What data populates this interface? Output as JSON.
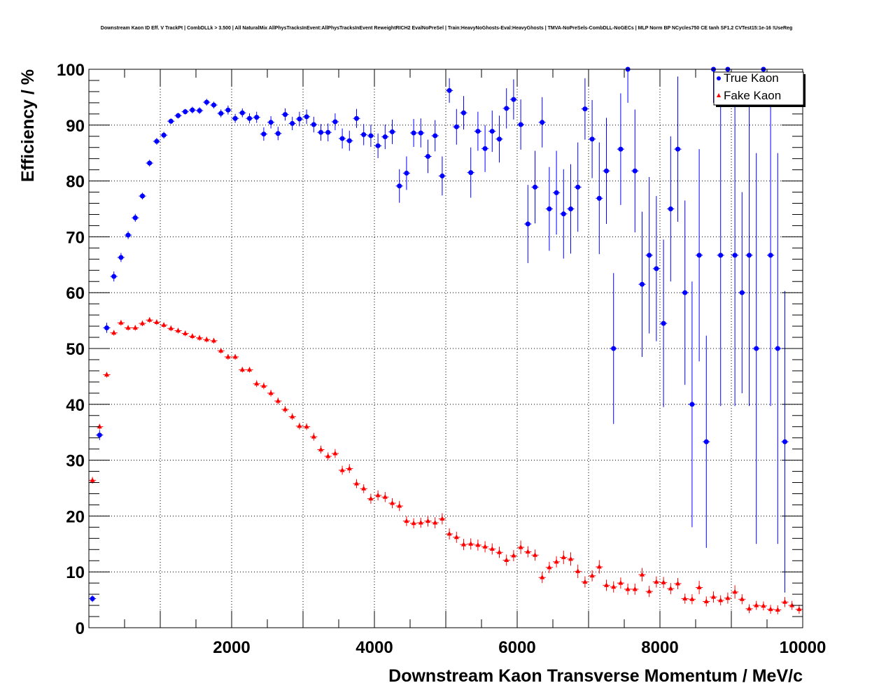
{
  "chart_data": {
    "type": "scatter",
    "title": "Downstream Kaon ID Eff. V TrackPt | CombDLLk > 3.500 | All NaturalMix AllPhysTracksInEvent:AllPhysTracksInEvent ReweightRICH2 EvalNoPreSel | Train:HeavyNoGhosts-Eval:HeavyGhosts | TMVA-NoPreSels-CombDLL-NoGECs | MLP Norm BP NCycles750 CE tanh SF1.2 CVTest15:1e-16 !UseReg",
    "xlabel": "Downstream Kaon Transverse Momentum / MeV/c",
    "ylabel": "Efficiency / %",
    "xlim": [
      0,
      10000
    ],
    "ylim": [
      0,
      100
    ],
    "x_ticks": [
      "2000",
      "4000",
      "6000",
      "8000",
      "10000"
    ],
    "y_ticks": [
      "0",
      "10",
      "20",
      "30",
      "40",
      "50",
      "60",
      "70",
      "80",
      "90",
      "100"
    ],
    "grid": true,
    "legend": "top-right",
    "bin_width": 100,
    "series": [
      {
        "name": "True Kaon",
        "color": "#0000ff",
        "marker": "circle",
        "x": [
          50,
          150,
          250,
          350,
          450,
          550,
          650,
          750,
          850,
          950,
          1050,
          1150,
          1250,
          1350,
          1450,
          1550,
          1650,
          1750,
          1850,
          1950,
          2050,
          2150,
          2250,
          2350,
          2450,
          2550,
          2650,
          2750,
          2850,
          2950,
          3050,
          3150,
          3250,
          3350,
          3450,
          3550,
          3650,
          3750,
          3850,
          3950,
          4050,
          4150,
          4250,
          4350,
          4450,
          4550,
          4650,
          4750,
          4850,
          4950,
          5050,
          5150,
          5250,
          5350,
          5450,
          5550,
          5650,
          5750,
          5850,
          5950,
          6050,
          6150,
          6250,
          6350,
          6450,
          6550,
          6650,
          6750,
          6850,
          6950,
          7050,
          7150,
          7250,
          7350,
          7450,
          7550,
          7650,
          7750,
          7850,
          7950,
          8050,
          8150,
          8250,
          8350,
          8450,
          8550,
          8650,
          8750,
          8850,
          8950,
          9050,
          9150,
          9250,
          9350,
          9450,
          9550,
          9650,
          9750,
          9850,
          9950
        ],
        "y": [
          5.2,
          34.5,
          53.7,
          62.9,
          66.3,
          70.3,
          73.4,
          77.3,
          83.2,
          87.1,
          88.2,
          90.7,
          91.7,
          92.4,
          92.7,
          92.6,
          94.1,
          93.6,
          92.1,
          92.7,
          91.2,
          92.2,
          91.2,
          91.4,
          88.4,
          90.5,
          88.5,
          91.9,
          90.3,
          91.1,
          91.5,
          90.1,
          88.7,
          88.7,
          90.6,
          87.6,
          87.2,
          91.2,
          88.3,
          88.1,
          86.3,
          87.9,
          88.8,
          79.1,
          81.4,
          88.6,
          88.6,
          84.4,
          88.1,
          80.9,
          96.2,
          89.7,
          92.2,
          81.5,
          88.9,
          85.8,
          88.9,
          87.5,
          93.0,
          94.6,
          90.1,
          72.3,
          78.9,
          90.5,
          75.0,
          77.9,
          74.1,
          75.0,
          78.9,
          92.9,
          87.5,
          76.9,
          81.8,
          50.0,
          85.7,
          100.0,
          81.8,
          61.5,
          66.7,
          64.3,
          54.5,
          75.0,
          85.7,
          60.0,
          40.0,
          66.7,
          33.3,
          100.0,
          66.7,
          100.0,
          66.7,
          60.0,
          66.7,
          50.0,
          100.0,
          66.7,
          50.0,
          33.3,
          null,
          null
        ],
        "err": [
          0.6,
          0.9,
          0.9,
          0.9,
          0.8,
          0.7,
          0.7,
          0.6,
          0.6,
          0.6,
          0.6,
          0.5,
          0.5,
          0.5,
          0.6,
          0.6,
          0.6,
          0.6,
          0.7,
          0.8,
          0.8,
          0.8,
          0.9,
          1.0,
          1.2,
          1.1,
          1.2,
          1.1,
          1.2,
          1.3,
          1.3,
          1.4,
          1.5,
          1.6,
          1.5,
          1.8,
          1.8,
          1.7,
          1.9,
          2.0,
          2.2,
          2.2,
          2.2,
          3.0,
          3.0,
          2.5,
          2.6,
          3.0,
          2.8,
          3.5,
          2.2,
          3.2,
          3.0,
          4.5,
          3.5,
          4.2,
          3.7,
          4.2,
          3.6,
          3.6,
          4.5,
          7.0,
          6.5,
          4.5,
          7.5,
          7.5,
          8.0,
          8.0,
          8.0,
          5.5,
          7.0,
          10.0,
          9.5,
          13.5,
          10.0,
          6.0,
          11.0,
          13.0,
          14.0,
          13.0,
          15.0,
          13.0,
          13.0,
          16.5,
          22.0,
          19.0,
          19.0,
          6.0,
          27.0,
          6.0,
          27.0,
          18.0,
          27.0,
          35.0,
          6.0,
          27.0,
          35.0,
          27.0,
          0,
          0
        ]
      },
      {
        "name": "Fake Kaon",
        "color": "#ff0000",
        "marker": "triangle",
        "x": [
          50,
          150,
          250,
          350,
          450,
          550,
          650,
          750,
          850,
          950,
          1050,
          1150,
          1250,
          1350,
          1450,
          1550,
          1650,
          1750,
          1850,
          1950,
          2050,
          2150,
          2250,
          2350,
          2450,
          2550,
          2650,
          2750,
          2850,
          2950,
          3050,
          3150,
          3250,
          3350,
          3450,
          3550,
          3650,
          3750,
          3850,
          3950,
          4050,
          4150,
          4250,
          4350,
          4450,
          4550,
          4650,
          4750,
          4850,
          4950,
          5050,
          5150,
          5250,
          5350,
          5450,
          5550,
          5650,
          5750,
          5850,
          5950,
          6050,
          6150,
          6250,
          6350,
          6450,
          6550,
          6650,
          6750,
          6850,
          6950,
          7050,
          7150,
          7250,
          7350,
          7450,
          7550,
          7650,
          7750,
          7850,
          7950,
          8050,
          8150,
          8250,
          8350,
          8450,
          8550,
          8650,
          8750,
          8850,
          8950,
          9050,
          9150,
          9250,
          9350,
          9450,
          9550,
          9650,
          9750,
          9850,
          9950
        ],
        "y": [
          26.4,
          36.0,
          45.3,
          52.8,
          54.6,
          53.7,
          53.7,
          54.5,
          55.1,
          54.7,
          54.2,
          53.6,
          53.2,
          52.7,
          52.2,
          51.9,
          51.6,
          51.4,
          49.6,
          48.5,
          48.5,
          46.2,
          46.2,
          43.7,
          43.3,
          42.0,
          40.6,
          39.1,
          37.8,
          36.1,
          36.0,
          34.2,
          31.9,
          30.7,
          31.2,
          28.2,
          28.5,
          25.8,
          24.9,
          23.1,
          23.7,
          23.4,
          22.3,
          21.8,
          19.1,
          18.7,
          18.8,
          19.1,
          18.8,
          19.5,
          16.8,
          16.2,
          14.9,
          15.0,
          14.8,
          14.5,
          14.1,
          13.5,
          12.1,
          12.9,
          14.4,
          13.6,
          13.0,
          9.0,
          10.8,
          11.8,
          12.6,
          12.3,
          10.1,
          8.2,
          9.3,
          10.9,
          7.6,
          7.3,
          8.0,
          6.9,
          6.9,
          9.5,
          6.5,
          8.2,
          8.1,
          7.0,
          7.9,
          5.2,
          5.1,
          7.2,
          4.7,
          5.5,
          4.9,
          5.3,
          6.4,
          5.1,
          3.4,
          4.0,
          3.9,
          3.3,
          3.2,
          4.6,
          4.0,
          3.3
        ],
        "err": [
          0.6,
          0.5,
          0.5,
          0.5,
          0.5,
          0.5,
          0.5,
          0.5,
          0.5,
          0.5,
          0.5,
          0.5,
          0.5,
          0.5,
          0.5,
          0.5,
          0.5,
          0.5,
          0.5,
          0.5,
          0.5,
          0.5,
          0.5,
          0.6,
          0.6,
          0.6,
          0.6,
          0.6,
          0.6,
          0.6,
          0.6,
          0.7,
          0.7,
          0.7,
          0.8,
          0.8,
          0.8,
          0.8,
          0.8,
          0.9,
          0.9,
          0.9,
          0.9,
          0.9,
          0.9,
          0.9,
          0.9,
          1.0,
          1.0,
          1.0,
          1.0,
          1.0,
          1.0,
          1.0,
          1.0,
          1.0,
          1.0,
          1.0,
          1.0,
          1.0,
          1.2,
          1.0,
          1.0,
          1.0,
          1.0,
          1.0,
          1.2,
          1.2,
          1.2,
          1.0,
          1.0,
          1.2,
          1.0,
          1.0,
          1.0,
          1.0,
          1.0,
          1.2,
          1.0,
          1.0,
          1.0,
          1.0,
          1.0,
          0.9,
          0.9,
          1.2,
          0.9,
          1.0,
          0.9,
          1.0,
          1.2,
          0.9,
          0.8,
          0.8,
          0.8,
          0.8,
          0.8,
          0.9,
          0.8,
          0.8
        ]
      }
    ]
  }
}
